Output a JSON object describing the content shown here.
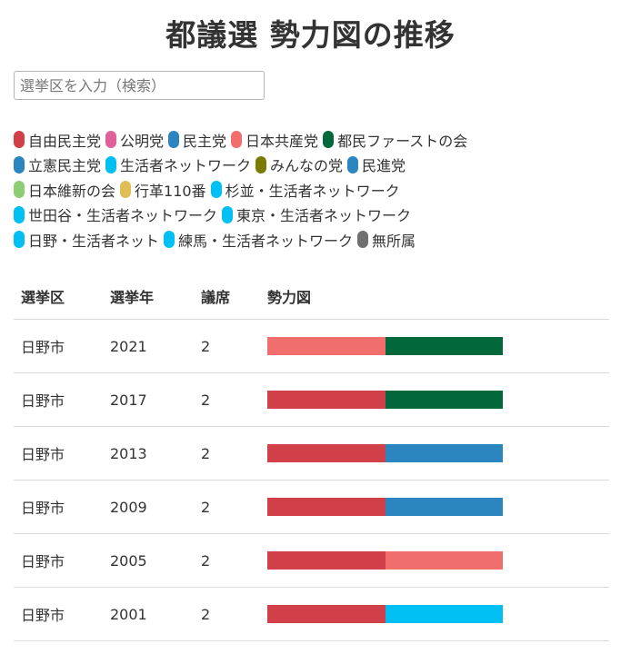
{
  "title": "都議選 勢力図の推移",
  "search": {
    "placeholder": "選挙区を入力（検索）"
  },
  "legend_rows": [
    [
      {
        "label": "自由民主党",
        "color": "#d13f48"
      },
      {
        "label": "公明党",
        "color": "#e0609a"
      },
      {
        "label": "民主党",
        "color": "#2b86c0"
      },
      {
        "label": "日本共産党",
        "color": "#f06e6c"
      },
      {
        "label": "都民ファーストの会",
        "color": "#00683a"
      }
    ],
    [
      {
        "label": "立憲民主党",
        "color": "#2b86c0"
      },
      {
        "label": "生活者ネットワーク",
        "color": "#00bff2"
      },
      {
        "label": "みんなの党",
        "color": "#7a7a00"
      },
      {
        "label": "民進党",
        "color": "#2b86c0"
      }
    ],
    [
      {
        "label": "日本維新の会",
        "color": "#8dcd74"
      },
      {
        "label": "行革110番",
        "color": "#dfbf54"
      },
      {
        "label": "杉並・生活者ネットワーク",
        "color": "#00bff2"
      }
    ],
    [
      {
        "label": "世田谷・生活者ネットワーク",
        "color": "#00bff2"
      },
      {
        "label": "東京・生活者ネットワーク",
        "color": "#00bff2"
      }
    ],
    [
      {
        "label": "日野・生活者ネット",
        "color": "#00bff2"
      },
      {
        "label": "練馬・生活者ネットワーク",
        "color": "#00bff2"
      },
      {
        "label": "無所属",
        "color": "#707070"
      }
    ]
  ],
  "table": {
    "headers": [
      "選挙区",
      "選挙年",
      "議席",
      "勢力図"
    ],
    "rows": [
      {
        "district": "日野市",
        "year": "2021",
        "seats": "2",
        "parties": [
          "日本共産党",
          "都民ファーストの会"
        ],
        "colors": [
          "#f06e6c",
          "#00683a"
        ]
      },
      {
        "district": "日野市",
        "year": "2017",
        "seats": "2",
        "parties": [
          "自由民主党",
          "都民ファーストの会"
        ],
        "colors": [
          "#d13f48",
          "#00683a"
        ]
      },
      {
        "district": "日野市",
        "year": "2013",
        "seats": "2",
        "parties": [
          "自由民主党",
          "民主党"
        ],
        "colors": [
          "#d13f48",
          "#2b86c0"
        ]
      },
      {
        "district": "日野市",
        "year": "2009",
        "seats": "2",
        "parties": [
          "自由民主党",
          "民主党"
        ],
        "colors": [
          "#d13f48",
          "#2b86c0"
        ]
      },
      {
        "district": "日野市",
        "year": "2005",
        "seats": "2",
        "parties": [
          "自由民主党",
          "日本共産党"
        ],
        "colors": [
          "#d13f48",
          "#f06e6c"
        ]
      },
      {
        "district": "日野市",
        "year": "2001",
        "seats": "2",
        "parties": [
          "自由民主党",
          "生活者ネットワーク"
        ],
        "colors": [
          "#d13f48",
          "#00bff2"
        ]
      }
    ]
  }
}
